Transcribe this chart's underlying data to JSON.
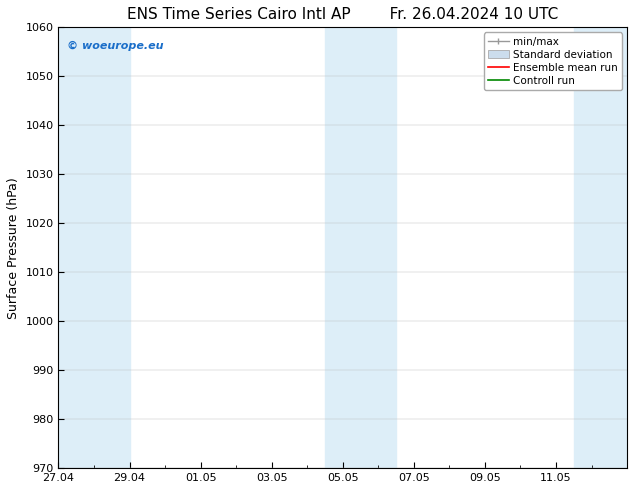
{
  "title_left": "ENS Time Series Cairo Intl AP",
  "title_right": "Fr. 26.04.2024 10 UTC",
  "ylabel": "Surface Pressure (hPa)",
  "ylim": [
    970,
    1060
  ],
  "yticks": [
    970,
    980,
    990,
    1000,
    1010,
    1020,
    1030,
    1040,
    1050,
    1060
  ],
  "xlim": [
    0,
    16
  ],
  "xtick_positions": [
    0,
    2,
    4,
    6,
    8,
    10,
    12,
    14
  ],
  "xtick_labels": [
    "27.04",
    "29.04",
    "01.05",
    "03.05",
    "05.05",
    "07.05",
    "09.05",
    "11.05"
  ],
  "minor_xtick_positions": [
    1,
    3,
    5,
    7,
    9,
    11,
    13,
    15
  ],
  "shaded_bands": [
    {
      "x_start": 0,
      "x_end": 2
    },
    {
      "x_start": 7.5,
      "x_end": 9.5
    },
    {
      "x_start": 14.5,
      "x_end": 16
    }
  ],
  "shade_color": "#ddeef8",
  "watermark_text": "© woeurope.eu",
  "watermark_color": "#1a6ec9",
  "legend_entries": [
    {
      "label": "min/max",
      "color": "#aaaaaa",
      "type": "minmax"
    },
    {
      "label": "Standard deviation",
      "color": "#ccdded",
      "type": "stddev"
    },
    {
      "label": "Ensemble mean run",
      "color": "#ff0000",
      "type": "line"
    },
    {
      "label": "Controll run",
      "color": "#008800",
      "type": "line"
    }
  ],
  "background_color": "#ffffff",
  "axes_background_color": "#ffffff",
  "border_color": "#000000",
  "tick_color": "#000000",
  "font_size_title": 11,
  "font_size_axis": 9,
  "font_size_tick": 8,
  "font_size_legend": 7.5,
  "font_size_watermark": 8
}
